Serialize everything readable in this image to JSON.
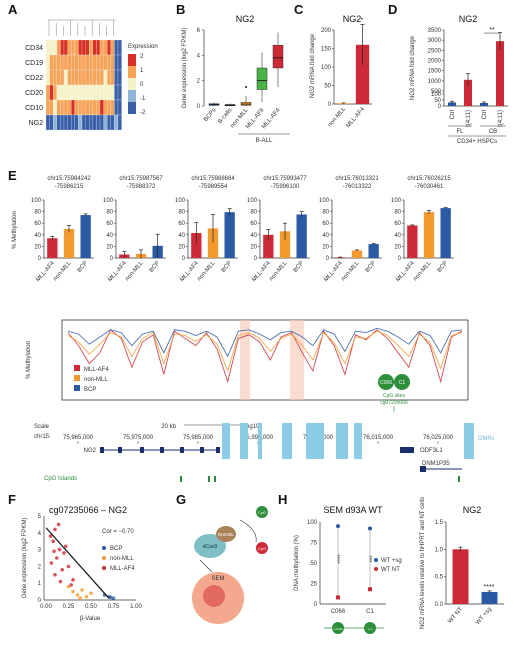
{
  "panels": {
    "A": "A",
    "B": "B",
    "C": "C",
    "D": "D",
    "E": "E",
    "F": "F",
    "G": "G",
    "H": "H"
  },
  "colors": {
    "mll_af4": "#cc2a36",
    "non_mll": "#f29a2e",
    "bcp": "#2b5aa5",
    "bcells": "#444444",
    "mll_af9": "#49b249",
    "green": "#2d8f3b",
    "dmr": "#8ccbe4",
    "island": "#2d8a3a"
  },
  "chart_data": [
    {
      "id": "A",
      "type": "heatmap",
      "rows": [
        "CD34",
        "CD19",
        "CD22",
        "CD20",
        "CD10",
        "NG2"
      ],
      "legend_title": "Expression",
      "legend_ticks": [
        "2",
        "1",
        "0",
        "-1",
        "-2"
      ],
      "palette": [
        "#3a60a8",
        "#8fb4d8",
        "#f5f2c8",
        "#f5a45a",
        "#d73127"
      ],
      "matrix": [
        [
          -0.3,
          0.1,
          0.5,
          1.2,
          1.8,
          2,
          1.5,
          1.1,
          1.4,
          1.9,
          2,
          1.7,
          1.2,
          1.6,
          1.9,
          1.4,
          1,
          1.6,
          1.3,
          -1.9,
          -2
        ],
        [
          0.3,
          0.8,
          1.1,
          1.4,
          1.2,
          0.9,
          1.1,
          0.6,
          0.9,
          1.2,
          1.4,
          1,
          0.8,
          1.1,
          0.7,
          1.2,
          1.5,
          1.3,
          0.9,
          -1.8,
          -1.9
        ],
        [
          0.4,
          0.9,
          0.6,
          1,
          0.8,
          0.5,
          1.2,
          1.4,
          0.7,
          1,
          0.6,
          1.3,
          1.1,
          0.8,
          1.2,
          0.9,
          0.5,
          1,
          0.7,
          -1.9,
          -2
        ],
        [
          1.4,
          1.8,
          1.2,
          -0.2,
          0.3,
          0.5,
          -0.4,
          -0.1,
          0.4,
          0.2,
          -0.2,
          0.3,
          0.1,
          -0.3,
          0.4,
          0,
          0.2,
          -0.1,
          0.3,
          -1.8,
          -1.7
        ],
        [
          0.6,
          1,
          0.4,
          1.1,
          1.5,
          1.3,
          0.8,
          1.6,
          1.2,
          0.9,
          1.4,
          1.1,
          1.5,
          0.9,
          1.2,
          1.6,
          1.3,
          1,
          1.2,
          -1.9,
          -2
        ],
        [
          -1.6,
          -1.8,
          -1.4,
          -1.7,
          -1.5,
          -1.8,
          -1.6,
          -1.5,
          -1.8,
          -1.4,
          -1.7,
          -1.6,
          -1.8,
          -1.5,
          -1.7,
          -1.6,
          -1.4,
          -1.7,
          -1.8,
          -1.3,
          -1.6
        ]
      ]
    },
    {
      "id": "B",
      "type": "box",
      "title": "NG2",
      "ylabel": "Gene expression (log2 FPKM)",
      "ylim": [
        0,
        6
      ],
      "yticks": [
        0,
        2,
        4,
        6
      ],
      "categories": [
        "BCPs",
        "B-cells",
        "non-MLL",
        "MLL-AF9",
        "MLL-AF4"
      ],
      "group_label": "B-ALL",
      "boxes": [
        {
          "min": 0,
          "q1": 0.05,
          "median": 0.1,
          "q3": 0.18,
          "max": 0.3
        },
        {
          "min": 0,
          "q1": 0.02,
          "median": 0.05,
          "q3": 0.12,
          "max": 0.2
        },
        {
          "min": 0,
          "q1": 0.05,
          "median": 0.15,
          "q3": 0.3,
          "max": 0.8,
          "outliers": [
            1.5
          ]
        },
        {
          "min": 0.3,
          "q1": 1.3,
          "median": 2,
          "q3": 3,
          "max": 4.2
        },
        {
          "min": 1.5,
          "q1": 3,
          "median": 3.8,
          "q3": 4.8,
          "max": 5.8
        }
      ]
    },
    {
      "id": "C",
      "type": "bar",
      "title": "NG2",
      "ylabel": "NG2 mRNA fold change",
      "ylim": [
        0,
        200
      ],
      "yticks": [
        0,
        50,
        100,
        150,
        200
      ],
      "categories": [
        "non-MLL",
        "MLL-AF4"
      ],
      "values": [
        2,
        160
      ],
      "errors": [
        1,
        55
      ],
      "annotation": "*"
    },
    {
      "id": "D",
      "type": "bar",
      "title": "NG2",
      "ylabel": "NG2 mRNA fold change",
      "ylim": [
        0,
        3500
      ],
      "yticks": [
        0,
        50,
        100,
        500,
        1000,
        1500,
        2000,
        2500,
        3000,
        3500
      ],
      "categories": [
        "Ctrl",
        "t(4;11)",
        "Ctrl",
        "t(4;11)"
      ],
      "group_labels": [
        "FL",
        "CB"
      ],
      "subtitle": "CD34+ HSPCs",
      "values": [
        30,
        1050,
        25,
        2950
      ],
      "errors": [
        10,
        300,
        8,
        420
      ],
      "annotation": "**"
    },
    {
      "id": "E",
      "type": "bar",
      "ylabel": "% Methylation",
      "ylim": [
        0,
        100
      ],
      "yticks": [
        0,
        20,
        40,
        60,
        80,
        100
      ],
      "categories": [
        "MLL-AF4",
        "non-MLL",
        "BCP"
      ],
      "panels": [
        {
          "title": "chr15:75984242\n-75986215",
          "values": [
            34,
            50,
            74
          ],
          "errors": [
            3,
            6,
            2
          ]
        },
        {
          "title": "chr15:75987567\n-75988372",
          "values": [
            6,
            7,
            21
          ],
          "errors": [
            5,
            7,
            20
          ]
        },
        {
          "title": "chr15:75988684\n-75989554",
          "values": [
            43,
            51,
            79
          ],
          "errors": [
            18,
            24,
            6
          ]
        },
        {
          "title": "chr15:75993477\n-75996100",
          "values": [
            40,
            46,
            75
          ],
          "errors": [
            9,
            14,
            5
          ]
        },
        {
          "title": "chr15:76013321\n-76013322",
          "values": [
            1,
            13,
            24
          ],
          "errors": [
            0.5,
            1,
            1
          ]
        },
        {
          "title": "chr15:76026215\n-76030461",
          "values": [
            56,
            79,
            86
          ],
          "errors": [
            1,
            3,
            1
          ]
        }
      ]
    },
    {
      "id": "E-track",
      "type": "line",
      "ylabel": "% Methylation",
      "legend": [
        "MLL-AF4",
        "non-MLL",
        "BCP"
      ],
      "series": [
        {
          "name": "MLL-AF4",
          "values": [
            88,
            70,
            45,
            60,
            92,
            80,
            40,
            75,
            85,
            30,
            90,
            80,
            70,
            88,
            65,
            20,
            80,
            85,
            75,
            50,
            82,
            88,
            60,
            35,
            90,
            70,
            30,
            85,
            78,
            92,
            80,
            60,
            40,
            88,
            70,
            20,
            82,
            90
          ]
        },
        {
          "name": "non-MLL",
          "values": [
            84,
            75,
            58,
            72,
            88,
            82,
            55,
            80,
            88,
            45,
            86,
            84,
            76,
            85,
            72,
            35,
            84,
            88,
            80,
            62,
            80,
            86,
            70,
            50,
            88,
            74,
            45,
            82,
            80,
            90,
            84,
            70,
            55,
            86,
            74,
            38,
            84,
            88
          ]
        },
        {
          "name": "BCP",
          "values": [
            90,
            86,
            72,
            82,
            92,
            88,
            70,
            86,
            90,
            60,
            92,
            90,
            84,
            90,
            82,
            55,
            90,
            92,
            86,
            78,
            88,
            90,
            82,
            70,
            92,
            86,
            62,
            90,
            88,
            94,
            90,
            82,
            72,
            90,
            84,
            60,
            90,
            92
          ]
        }
      ],
      "cpg_sites": [
        "C066",
        "C1"
      ],
      "cpg_label": "CpG sites",
      "cpg_probe": "cg07235066",
      "scale_label": "Scale",
      "scale_value": "20 kb",
      "genome": "hg19",
      "chrom": "chr15:",
      "positions": [
        "75,965,000",
        "75,975,000",
        "75,985,000",
        "75,995,000",
        "76,005,000",
        "76,015,000",
        "76,025,000"
      ],
      "genes": [
        "NG2",
        "ODF3L1",
        "DNM1P35"
      ],
      "dmr_label": "DMRs",
      "island_label": "CpG Islands"
    },
    {
      "id": "F",
      "type": "scatter",
      "title": "cg07235066 – NG2",
      "xlabel": "β-Value",
      "ylabel": "Gene expression (log2 FPKM)",
      "xlim": [
        0,
        1
      ],
      "ylim": [
        0,
        5
      ],
      "xticks": [
        "0.00",
        "0.25",
        "0.50",
        "0.75",
        "1.00"
      ],
      "yticks": [
        0,
        1,
        2,
        3,
        4,
        5
      ],
      "cor_label": "Cor = −0.70",
      "legend": [
        "BCP",
        "non-MLL",
        "MLL-AF4"
      ],
      "series": [
        {
          "name": "BCP",
          "points": [
            [
              0.7,
              0.2
            ],
            [
              0.75,
              0.1
            ],
            [
              0.65,
              0.3
            ],
            [
              0.72,
              0.15
            ]
          ]
        },
        {
          "name": "non-MLL",
          "points": [
            [
              0.3,
              0.5
            ],
            [
              0.35,
              0.3
            ],
            [
              0.4,
              0.6
            ],
            [
              0.45,
              0.2
            ],
            [
              0.25,
              0.8
            ],
            [
              0.5,
              0.4
            ],
            [
              0.38,
              0.1
            ]
          ]
        },
        {
          "name": "MLL-AF4",
          "points": [
            [
              0.05,
              3.8
            ],
            [
              0.1,
              4.2
            ],
            [
              0.08,
              3.5
            ],
            [
              0.15,
              3
            ],
            [
              0.12,
              2.5
            ],
            [
              0.2,
              2.8
            ],
            [
              0.18,
              1.8
            ],
            [
              0.25,
              2
            ],
            [
              0.1,
              1.5
            ],
            [
              0.3,
              1.2
            ],
            [
              0.22,
              3.2
            ],
            [
              0.06,
              2.2
            ],
            [
              0.14,
              4.5
            ],
            [
              0.28,
              0.9
            ],
            [
              0.16,
              1.1
            ],
            [
              0.09,
              2.9
            ]
          ]
        }
      ],
      "regression": [
        [
          0,
          4.3
        ],
        [
          0.7,
          0.1
        ]
      ]
    },
    {
      "id": "H1",
      "type": "scatter",
      "title": "SEM d93A WT",
      "ylabel": "DNA methylation (%)",
      "ylim": [
        0,
        100
      ],
      "yticks": [
        0,
        25,
        50,
        75,
        100
      ],
      "categories": [
        "C066",
        "C1"
      ],
      "legend": [
        "WT +sg",
        "WT NT"
      ],
      "series": [
        {
          "name": "WT +sg",
          "values": [
            95,
            92
          ]
        },
        {
          "name": "WT NT",
          "values": [
            8,
            18
          ]
        }
      ],
      "annotations": [
        "****",
        "***"
      ]
    },
    {
      "id": "H2",
      "type": "bar",
      "title": "NG2",
      "ylabel": "NG2 mRNA levels relative to hHPRT and NT cells",
      "ylim": [
        0,
        1.5
      ],
      "yticks": [
        "0.0",
        "0.5",
        "1.0",
        "1.5"
      ],
      "categories": [
        "WT NT",
        "WT +sg"
      ],
      "values": [
        1,
        0.22
      ],
      "errors": [
        0.04,
        0.02
      ],
      "annotation": "****"
    }
  ],
  "schematic_G": {
    "labels": [
      "dCas9",
      "Dnmt3L",
      "CpG",
      "SEM"
    ]
  }
}
